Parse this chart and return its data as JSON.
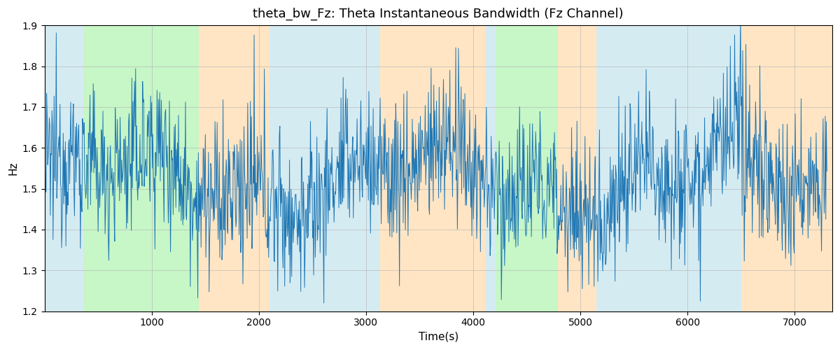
{
  "title": "theta_bw_Fz: Theta Instantaneous Bandwidth (Fz Channel)",
  "xlabel": "Time(s)",
  "ylabel": "Hz",
  "xlim": [
    0,
    7350
  ],
  "ylim": [
    1.2,
    1.9
  ],
  "line_color": "#1f77b4",
  "line_width": 0.7,
  "background_color": "#ffffff",
  "grid_color": "#b0b0b0",
  "grid_alpha": 0.8,
  "grid_linewidth": 0.5,
  "title_fontsize": 13,
  "label_fontsize": 11,
  "tick_fontsize": 10,
  "colored_bands": [
    {
      "xstart": 0,
      "xend": 360,
      "color": "#add8e6",
      "alpha": 0.5
    },
    {
      "xstart": 360,
      "xend": 1440,
      "color": "#90ee90",
      "alpha": 0.5
    },
    {
      "xstart": 1440,
      "xend": 2100,
      "color": "#ffd59e",
      "alpha": 0.6
    },
    {
      "xstart": 2100,
      "xend": 3130,
      "color": "#add8e6",
      "alpha": 0.5
    },
    {
      "xstart": 3130,
      "xend": 4110,
      "color": "#ffd59e",
      "alpha": 0.6
    },
    {
      "xstart": 4110,
      "xend": 4210,
      "color": "#add8e6",
      "alpha": 0.5
    },
    {
      "xstart": 4210,
      "xend": 4790,
      "color": "#90ee90",
      "alpha": 0.5
    },
    {
      "xstart": 4790,
      "xend": 5150,
      "color": "#ffd59e",
      "alpha": 0.6
    },
    {
      "xstart": 5150,
      "xend": 6500,
      "color": "#add8e6",
      "alpha": 0.5
    },
    {
      "xstart": 6500,
      "xend": 7350,
      "color": "#ffd59e",
      "alpha": 0.6
    }
  ],
  "yticks": [
    1.2,
    1.3,
    1.4,
    1.5,
    1.6,
    1.7,
    1.8,
    1.9
  ],
  "xticks": [
    1000,
    2000,
    3000,
    4000,
    5000,
    6000,
    7000
  ],
  "figsize": [
    12.0,
    5.0
  ],
  "dpi": 100,
  "seed": 12345,
  "n_points": 1460,
  "t_start": 0,
  "t_end": 7300,
  "base_value": 1.52,
  "noise_std": 0.095,
  "slow_amp1": 0.06,
  "slow_period1": 2800,
  "slow_amp2": 0.04,
  "slow_period2": 900
}
